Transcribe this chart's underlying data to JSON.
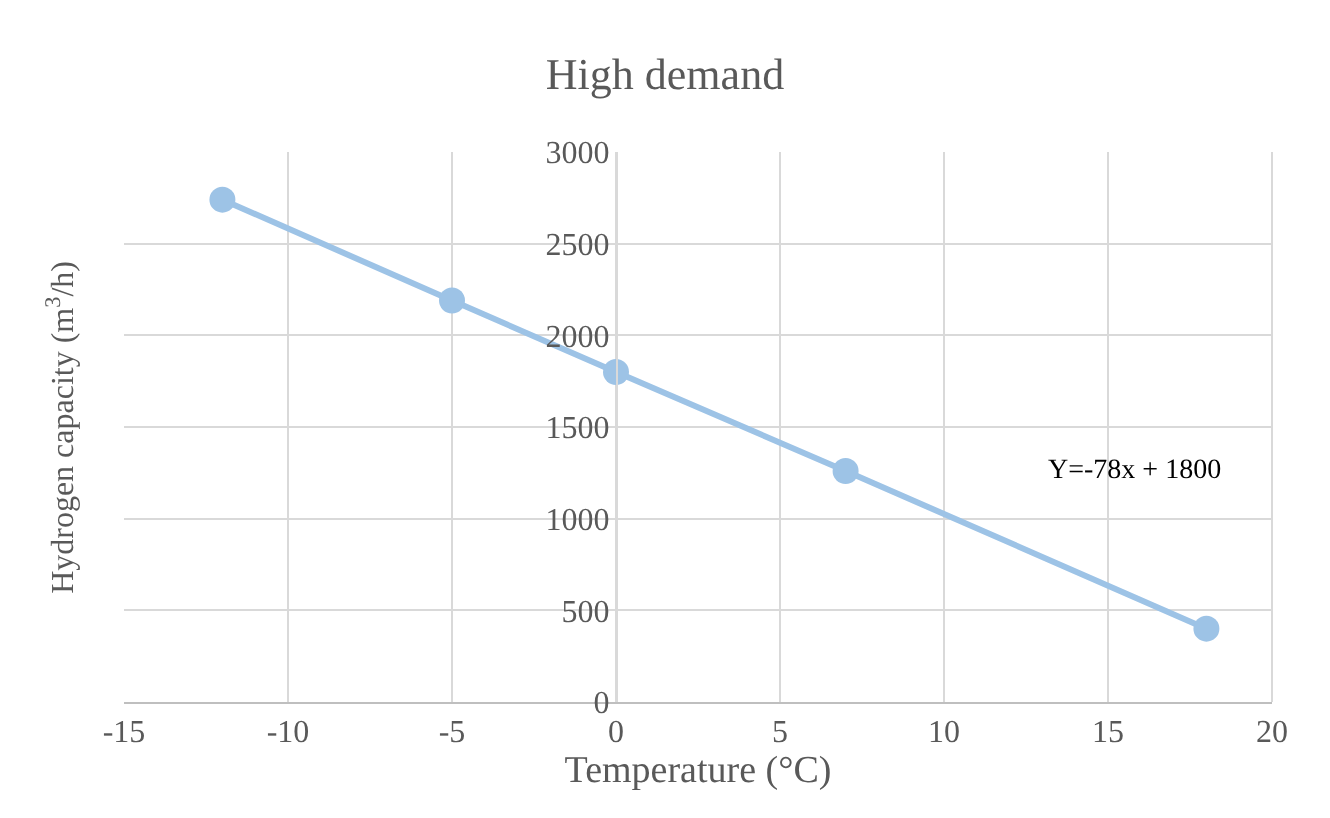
{
  "chart_data": {
    "type": "line",
    "title": "High demand",
    "xlabel": "Temperature (°C)",
    "ylabel": "Hydrogen capacity (m$^{3}$/h)",
    "x": [
      -12,
      -5,
      0,
      7,
      18
    ],
    "series": [
      {
        "color": "#9dc3e6",
        "values": [
          2740,
          2190,
          1800,
          1260,
          400
        ]
      }
    ],
    "xlim": [
      -15,
      20
    ],
    "xticks": [
      -15,
      -10,
      -5,
      0,
      5,
      10,
      15,
      20
    ],
    "ylim": [
      0,
      3000
    ],
    "yticks": [
      0,
      500,
      1000,
      1500,
      2000,
      2500,
      3000
    ],
    "grid": true,
    "marker": "circle",
    "line_style": "solid",
    "annotations": [
      "Y=-78x + 1800"
    ]
  }
}
